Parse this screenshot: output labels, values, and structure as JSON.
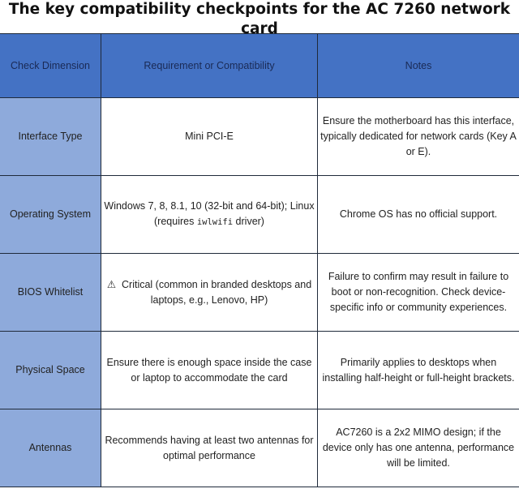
{
  "title": "The key compatibility checkpoints for the AC 7260 network card",
  "headers": [
    "Check Dimension",
    "Requirement or Compatibility",
    "Notes"
  ],
  "rows": [
    {
      "dimension": "Interface Type",
      "requirement": "Mini PCI-E",
      "notes": "Ensure the motherboard has this interface, typically dedicated for network cards (Key A or E)."
    },
    {
      "dimension": "Operating System",
      "requirement_pre": "Windows 7, 8, 8.1, 10 (32-bit and 64-bit); Linux (requires ",
      "requirement_code": "iwlwifi",
      "requirement_post": " driver)",
      "notes": "Chrome OS has no official support."
    },
    {
      "dimension": "BIOS Whitelist",
      "requirement_icon": "⚠",
      "requirement": "Critical (common in branded desktops and laptops, e.g., Lenovo, HP)",
      "notes": "Failure to confirm may result in failure to boot or non-recognition. Check device-specific info or community experiences."
    },
    {
      "dimension": "Physical Space",
      "requirement": "Ensure there is enough space inside the case or laptop to accommodate the card",
      "notes": "Primarily applies to desktops when installing half-height or full-height brackets."
    },
    {
      "dimension": "Antennas",
      "requirement": "Recommends having at least two antennas for optimal performance",
      "notes": "AC7260 is a 2x2 MIMO design; if the device only has one antenna, performance will be limited."
    }
  ],
  "colors": {
    "header_bg": "#4472c4",
    "dimension_bg": "#8eaadb"
  }
}
